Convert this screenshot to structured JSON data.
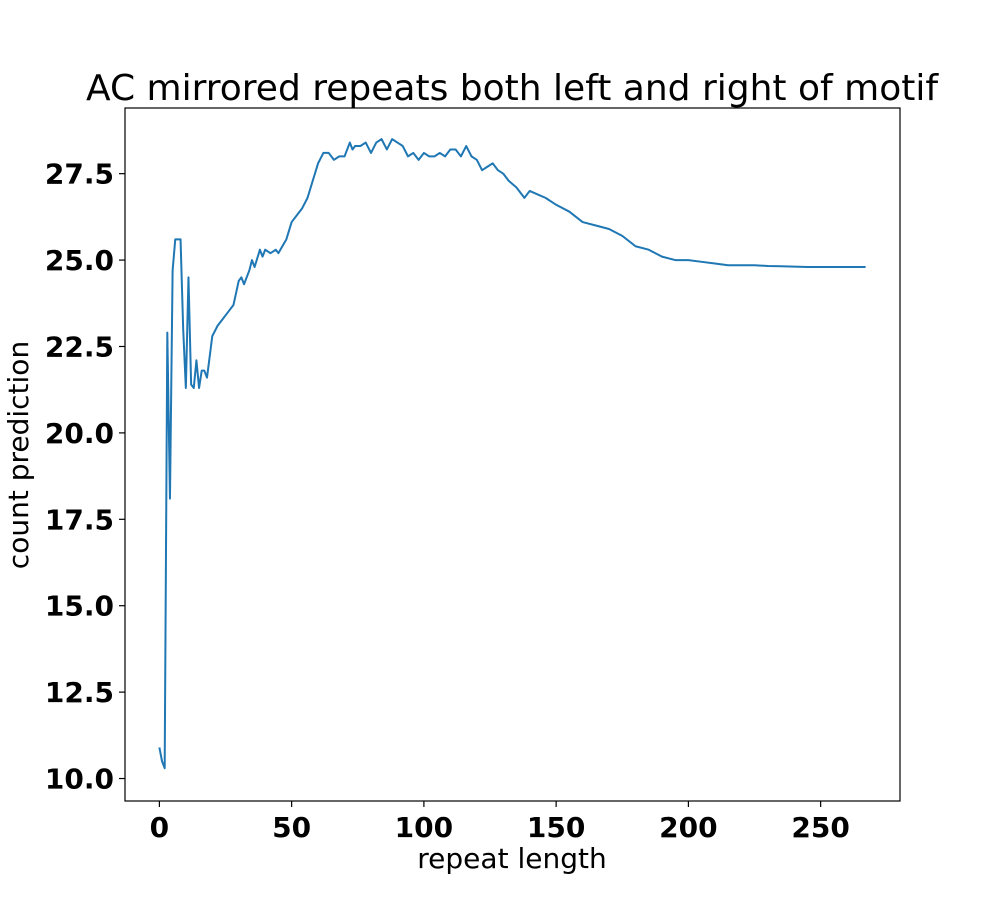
{
  "chart_data": {
    "type": "line",
    "title": "AC mirrored repeats both left and right of motif",
    "xlabel": "repeat length",
    "ylabel": "count prediction",
    "xlim": [
      -13,
      280
    ],
    "ylim": [
      9.35,
      29.4
    ],
    "xticks": [
      0,
      50,
      100,
      150,
      200,
      250
    ],
    "yticks": [
      10.0,
      12.5,
      15.0,
      17.5,
      20.0,
      22.5,
      25.0,
      27.5
    ],
    "xtick_labels": [
      "0",
      "50",
      "100",
      "150",
      "200",
      "250"
    ],
    "ytick_labels": [
      "10.0",
      "12.5",
      "15.0",
      "17.5",
      "20.0",
      "22.5",
      "25.0",
      "27.5"
    ],
    "grid": false,
    "legend": "none",
    "colors": {
      "line": "#1f77b4",
      "axes": "#000000"
    },
    "series": [
      {
        "x": [
          0,
          1,
          2,
          3,
          4,
          5,
          6,
          7,
          8,
          9,
          10,
          11,
          12,
          13,
          14,
          15,
          16,
          17,
          18,
          20,
          22,
          24,
          26,
          28,
          30,
          31,
          32,
          34,
          35,
          36,
          38,
          39,
          40,
          42,
          44,
          45,
          48,
          50,
          52,
          54,
          56,
          58,
          60,
          62,
          64,
          65,
          66,
          68,
          70,
          72,
          73,
          74,
          76,
          78,
          80,
          82,
          84,
          86,
          88,
          90,
          92,
          94,
          96,
          98,
          100,
          102,
          104,
          106,
          108,
          110,
          112,
          114,
          116,
          118,
          120,
          122,
          124,
          126,
          128,
          130,
          132,
          135,
          138,
          140,
          143,
          146,
          150,
          155,
          160,
          165,
          170,
          175,
          180,
          185,
          190,
          195,
          200,
          205,
          210,
          215,
          220,
          225,
          230,
          235,
          240,
          245,
          250,
          255,
          260,
          265,
          267
        ],
        "y": [
          10.9,
          10.5,
          10.3,
          22.9,
          18.1,
          24.7,
          25.6,
          25.6,
          25.6,
          23.0,
          21.3,
          24.5,
          21.4,
          21.3,
          22.1,
          21.3,
          21.8,
          21.8,
          21.6,
          22.8,
          23.1,
          23.3,
          23.5,
          23.7,
          24.4,
          24.5,
          24.3,
          24.7,
          25.0,
          24.8,
          25.3,
          25.1,
          25.3,
          25.2,
          25.3,
          25.2,
          25.6,
          26.1,
          26.3,
          26.5,
          26.8,
          27.3,
          27.8,
          28.1,
          28.1,
          28.0,
          27.9,
          28.0,
          28.0,
          28.4,
          28.2,
          28.3,
          28.3,
          28.4,
          28.1,
          28.4,
          28.5,
          28.2,
          28.5,
          28.4,
          28.3,
          28.0,
          28.1,
          27.9,
          28.1,
          28.0,
          28.0,
          28.1,
          28.0,
          28.2,
          28.2,
          28.0,
          28.3,
          28.0,
          27.9,
          27.6,
          27.7,
          27.8,
          27.6,
          27.5,
          27.3,
          27.1,
          26.8,
          27.0,
          26.9,
          26.8,
          26.6,
          26.4,
          26.1,
          26.0,
          25.9,
          25.7,
          25.4,
          25.3,
          25.1,
          25.0,
          25.0,
          24.95,
          24.9,
          24.85,
          24.85,
          24.85,
          24.83,
          24.82,
          24.81,
          24.8,
          24.8,
          24.8,
          24.8,
          24.8,
          24.8
        ]
      }
    ]
  }
}
